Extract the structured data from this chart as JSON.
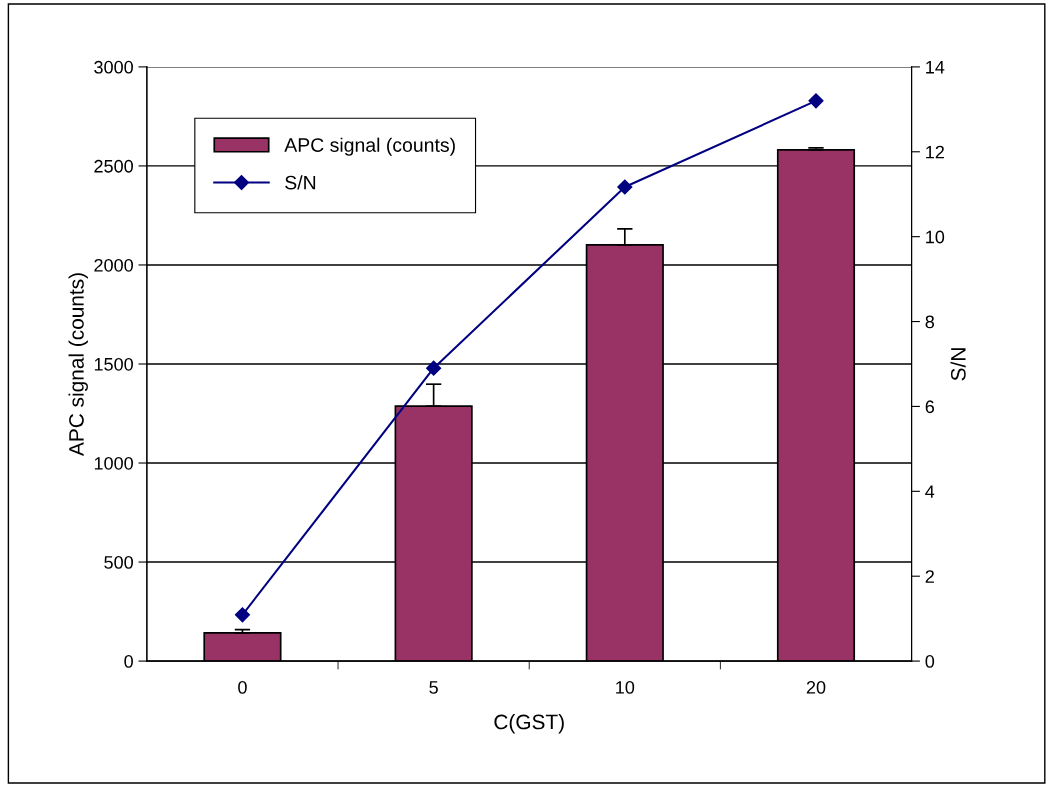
{
  "chart_data": {
    "type": "bar",
    "xlabel": "C(GST)",
    "ylabel": "APC signal (counts)",
    "y2label": "S/N",
    "categories": [
      "0",
      "5",
      "10",
      "20"
    ],
    "series": [
      {
        "name": "APC signal (counts)",
        "color": "#993366",
        "values": [
          142,
          1287,
          2101,
          2581
        ],
        "errors": [
          [
            142,
            159
          ],
          [
            1287,
            1398
          ],
          [
            2101,
            2182
          ],
          [
            2581,
            2591
          ]
        ]
      },
      {
        "name": "S/N",
        "type": "line",
        "axis": "y2",
        "color": "#000080",
        "marker": "diamond",
        "values": [
          1.09,
          6.9,
          11.17,
          13.2
        ]
      }
    ],
    "ylim": [
      0,
      3000
    ],
    "yticks": [
      0,
      500,
      1000,
      1500,
      2000,
      2500,
      3000
    ],
    "y2lim": [
      0,
      14
    ],
    "y2ticks": [
      0,
      2,
      4,
      6,
      8,
      10,
      12,
      14
    ],
    "grid": "y",
    "legend": "top left"
  }
}
